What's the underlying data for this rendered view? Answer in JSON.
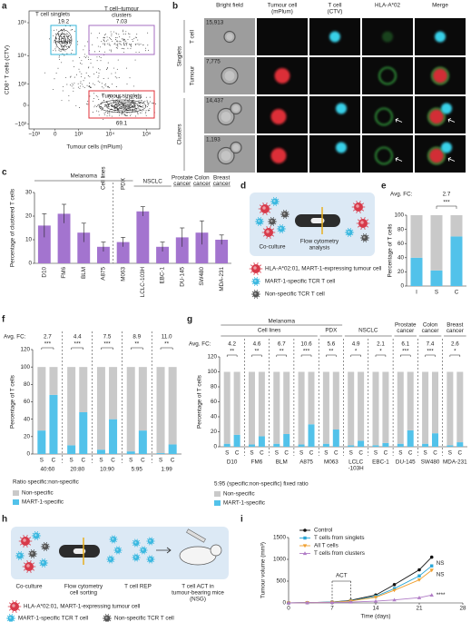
{
  "panel_letters": [
    "a",
    "b",
    "c",
    "d",
    "e",
    "f",
    "g",
    "h",
    "i"
  ],
  "panel_a": {
    "y_label": "CD8⁺ T cells (CTV)",
    "x_label": "Tumour cells (mPlum)",
    "x_ticks": [
      "−10³",
      "0",
      "10³",
      "10⁴",
      "10⁵"
    ],
    "y_ticks": [
      "−10³",
      "0",
      "10³",
      "10⁴",
      "10⁵"
    ],
    "gates": [
      {
        "label": [
          "T cell singlets"
        ],
        "percent": "19.2",
        "color": "#35b6d8"
      },
      {
        "label": [
          "T cell–tumour",
          "clusters"
        ],
        "percent": "7.03",
        "color": "#a56cc1"
      },
      {
        "label": [
          "Tumour singlets"
        ],
        "percent": "69.1",
        "color": "#e0303a"
      }
    ]
  },
  "panel_b": {
    "headers": [
      [
        "Bright field"
      ],
      [
        "Tumour cell",
        "(mPlum)"
      ],
      [
        "T cell",
        "(CTV)"
      ],
      [
        "HLA-A*02"
      ],
      [
        "Merge"
      ]
    ],
    "header_colors": [
      "#222222",
      "#e03030",
      "#2ab0c8",
      "#3aa040",
      "#222222"
    ],
    "groups": [
      "Singlets",
      "Clusters"
    ],
    "row_labels": [
      "T cell",
      "Tumour"
    ],
    "counts": [
      "15,913",
      "7,775",
      "14,437",
      "1,193"
    ]
  },
  "panel_d": {
    "steps": [
      [
        "Co-culture"
      ],
      [
        "Flow cytometry",
        "analysis"
      ]
    ],
    "legend": [
      "HLA-A*02:01, MART-1-expressing tumour cell",
      "MART-1-specific TCR T cell",
      "Non-specific TCR T cell"
    ]
  },
  "panel_h": {
    "steps": [
      [
        "Co-culture"
      ],
      [
        "Flow cytometry",
        "cell sorting"
      ],
      [
        "T cell REP"
      ],
      [
        "T cell ACT in",
        "tumour-bearing mice",
        "(NSG)"
      ]
    ],
    "legend": [
      "HLA-A*02:01, MART-1-expressing tumour cell",
      "MART-1-specific TCR T cell",
      "Non-specific TCR T cell"
    ]
  },
  "chart_data": [
    {
      "type": "bar",
      "y_label": "Percentage of clustered T cells",
      "categories": [
        "D10",
        "FM6",
        "BLM",
        "A875",
        "M063",
        "LCLC-103H",
        "EBC-1",
        "DU-145",
        "SW480",
        "MDA-231"
      ],
      "values": [
        16,
        21,
        13,
        7,
        9,
        22,
        7,
        11,
        13,
        10
      ],
      "errors": [
        5,
        4,
        4,
        2,
        2,
        2,
        2,
        4,
        5,
        2
      ],
      "color": "#a374cf",
      "ylim": [
        0,
        30
      ],
      "yticks": [
        0,
        10,
        20,
        30
      ],
      "group_labels": [
        [
          "Melanoma"
        ],
        [
          "Cell lines"
        ],
        [
          "PDX"
        ],
        [
          "NSCLC"
        ],
        [
          "Prostate",
          "cancer"
        ],
        [
          "Colon",
          "cancer"
        ],
        [
          "Breast",
          "cancer"
        ]
      ]
    },
    {
      "type": "stacked_bar",
      "y_label": "Percentage of T cells",
      "categories": [
        "I",
        "S",
        "C"
      ],
      "series": [
        {
          "name": "Non-specific",
          "color": "#c9c9c9",
          "values": [
            60,
            78,
            30
          ]
        },
        {
          "name": "MART-1-specific",
          "color": "#52c2ea",
          "values": [
            40,
            22,
            70
          ]
        }
      ],
      "ylim": [
        0,
        100
      ],
      "yticks": [
        0,
        20,
        40,
        60,
        80,
        100
      ],
      "fc_label": "Avg. FC:",
      "fold_changes": [
        "2.7"
      ],
      "significance": [
        "***"
      ]
    },
    {
      "type": "grouped_stacked_bar",
      "y_label": "Percentage of T cells",
      "x_label": "Ratio specific:non-specific",
      "groups": [
        [
          "40:60"
        ],
        [
          "20:80"
        ],
        [
          "10:90"
        ],
        [
          "5:95"
        ],
        [
          "1:99"
        ]
      ],
      "categories": [
        "S",
        "C",
        "S",
        "C",
        "S",
        "C",
        "S",
        "C",
        "S",
        "C"
      ],
      "series": [
        {
          "name": "Non-specific",
          "color": "#c9c9c9",
          "values": [
            73,
            32,
            90,
            52,
            95,
            60,
            97,
            73,
            99,
            89
          ]
        },
        {
          "name": "MART-1-specific",
          "color": "#52c2ea",
          "values": [
            27,
            68,
            10,
            48,
            5,
            40,
            3,
            27,
            1,
            11
          ]
        }
      ],
      "ylim": [
        0,
        120
      ],
      "yticks": [
        0,
        20,
        40,
        60,
        80,
        100,
        120
      ],
      "fc_label": "Avg. FC:",
      "fold_changes": [
        "2.7",
        "4.4",
        "7.5",
        "8.9",
        "11.0"
      ],
      "significance": [
        "***",
        "***",
        "***",
        "**",
        "**"
      ]
    },
    {
      "type": "grouped_stacked_bar",
      "y_label": "Percentage of T cells",
      "note": "5:95 (specific:non-specific) fixed ratio",
      "groups": [
        [
          "D10"
        ],
        [
          "FM6"
        ],
        [
          "BLM"
        ],
        [
          "A875"
        ],
        [
          "M063"
        ],
        [
          "LCLC",
          "-103H"
        ],
        [
          "EBC-1"
        ],
        [
          "DU-145"
        ],
        [
          "SW480"
        ],
        [
          "MDA-231"
        ]
      ],
      "categories": [
        "S",
        "C",
        "S",
        "C",
        "S",
        "C",
        "S",
        "C",
        "S",
        "C",
        "S",
        "C",
        "S",
        "C",
        "S",
        "C",
        "S",
        "C",
        "S",
        "C"
      ],
      "series": [
        {
          "name": "Non-specific",
          "color": "#c9c9c9",
          "values": [
            96,
            84,
            97,
            86,
            96,
            83,
            97,
            70,
            96,
            77,
            98,
            92,
            98,
            95,
            96,
            78,
            96,
            82,
            98,
            94
          ]
        },
        {
          "name": "MART-1-specific",
          "color": "#52c2ea",
          "values": [
            4,
            16,
            3,
            14,
            4,
            17,
            3,
            30,
            4,
            23,
            2,
            8,
            2,
            5,
            4,
            22,
            4,
            18,
            2,
            6
          ]
        }
      ],
      "ylim": [
        0,
        120
      ],
      "yticks": [
        0,
        20,
        40,
        60,
        80,
        100,
        120
      ],
      "fc_label": "Avg. FC:",
      "fold_changes": [
        "4.2",
        "4.6",
        "6.7",
        "10.6",
        "5.6",
        "4.9",
        "2.1",
        "6.1",
        "7.4",
        "2.6"
      ],
      "significance": [
        "**",
        "**",
        "**",
        "***",
        "**",
        "*",
        "*",
        "***",
        "***",
        "*"
      ],
      "group_labels": [
        [
          "Melanoma"
        ],
        [
          "Cell lines"
        ],
        [
          "PDX"
        ],
        [
          "NSCLC"
        ],
        [
          "Prostate",
          "cancer"
        ],
        [
          "Colon",
          "cancer"
        ],
        [
          "Breast",
          "cancer"
        ]
      ]
    },
    {
      "type": "line",
      "x_label": "Time (days)",
      "y_label": "Tumour volume (mm³)",
      "x": [
        0,
        3,
        7,
        10,
        14,
        17,
        21,
        23
      ],
      "series": [
        {
          "name": "Control",
          "color": "#111111",
          "marker": "circle",
          "values": [
            0,
            5,
            20,
            60,
            180,
            420,
            760,
            1050
          ]
        },
        {
          "name": "T cells from singlets",
          "color": "#2aa6d6",
          "marker": "square",
          "values": [
            0,
            5,
            18,
            50,
            150,
            330,
            620,
            850
          ],
          "end_label": "NS"
        },
        {
          "name": "All T cells",
          "color": "#f0a030",
          "marker": "down",
          "values": [
            0,
            5,
            15,
            45,
            130,
            290,
            530,
            750
          ],
          "end_label": "NS"
        },
        {
          "name": "T cells from clusters",
          "color": "#b07cc6",
          "marker": "up",
          "values": [
            0,
            5,
            10,
            20,
            40,
            70,
            120,
            180
          ],
          "end_label": "****"
        }
      ],
      "xlim": [
        0,
        28
      ],
      "xticks": [
        0,
        7,
        14,
        21,
        28
      ],
      "ylim": [
        0,
        1500
      ],
      "yticks": [
        0,
        500,
        1000,
        1500
      ],
      "act_label": "ACT",
      "act_days": [
        7,
        10
      ]
    }
  ]
}
